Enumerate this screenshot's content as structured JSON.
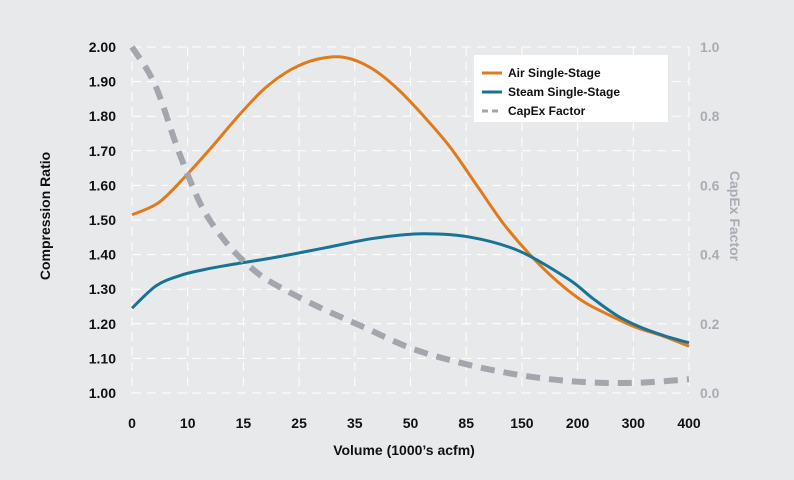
{
  "chart_data": {
    "type": "line",
    "xlabel": "Volume (1000’s acfm)",
    "ylabel": "Compression Ratio",
    "y2label": "CapEx Factor",
    "x_ticks": [
      "0",
      "10",
      "15",
      "25",
      "35",
      "50",
      "85",
      "150",
      "200",
      "300",
      "400"
    ],
    "y_ticks": [
      "1.00",
      "1.10",
      "1.20",
      "1.30",
      "1.40",
      "1.50",
      "1.60",
      "1.70",
      "1.80",
      "1.90",
      "2.00"
    ],
    "y2_ticks": [
      "0.0",
      "0.2",
      "0.4",
      "0.6",
      "0.8",
      "1.0"
    ],
    "ylim": [
      1.0,
      2.0
    ],
    "y2lim": [
      0.0,
      1.0
    ],
    "grid": "dashed white",
    "legend_position": "top-right",
    "series": [
      {
        "name": "Air Single-Stage",
        "axis": "left",
        "color": "#e07b1d",
        "style": "solid",
        "points": [
          [
            0,
            1.515
          ],
          [
            0.5,
            1.55
          ],
          [
            1,
            1.625
          ],
          [
            1.5,
            1.71
          ],
          [
            2,
            1.8
          ],
          [
            2.5,
            1.88
          ],
          [
            3,
            1.935
          ],
          [
            3.5,
            1.965
          ],
          [
            4,
            1.97
          ],
          [
            4.5,
            1.94
          ],
          [
            5,
            1.88
          ],
          [
            5.5,
            1.8
          ],
          [
            6,
            1.71
          ],
          [
            6.5,
            1.6
          ],
          [
            7,
            1.49
          ],
          [
            7.5,
            1.4
          ],
          [
            8,
            1.325
          ],
          [
            8.5,
            1.265
          ],
          [
            9,
            1.225
          ],
          [
            9.5,
            1.19
          ],
          [
            10,
            1.165
          ],
          [
            10.5,
            1.135
          ]
        ]
      },
      {
        "name": "Steam Single-Stage",
        "axis": "left",
        "color": "#1a7394",
        "style": "solid",
        "points": [
          [
            0,
            1.245
          ],
          [
            0.5,
            1.31
          ],
          [
            1,
            1.34
          ],
          [
            1.5,
            1.357
          ],
          [
            2,
            1.37
          ],
          [
            3,
            1.393
          ],
          [
            4,
            1.42
          ],
          [
            5,
            1.447
          ],
          [
            6,
            1.46
          ],
          [
            7,
            1.45
          ],
          [
            8,
            1.41
          ],
          [
            9,
            1.33
          ],
          [
            9.5,
            1.275
          ],
          [
            10,
            1.225
          ],
          [
            10.5,
            1.19
          ],
          [
            11,
            1.165
          ],
          [
            11.5,
            1.145
          ]
        ]
      },
      {
        "name": "CapEx Factor",
        "axis": "right",
        "color": "#a3a7ad",
        "style": "dashed",
        "points": [
          [
            0,
            1.0
          ],
          [
            0.5,
            0.89
          ],
          [
            1,
            0.7
          ],
          [
            1.5,
            0.54
          ],
          [
            2,
            0.44
          ],
          [
            2.5,
            0.37
          ],
          [
            3,
            0.32
          ],
          [
            4,
            0.25
          ],
          [
            5,
            0.19
          ],
          [
            6,
            0.13
          ],
          [
            7,
            0.09
          ],
          [
            8,
            0.06
          ],
          [
            9,
            0.04
          ],
          [
            10,
            0.03
          ],
          [
            11,
            0.03
          ],
          [
            12,
            0.04
          ]
        ]
      }
    ]
  }
}
